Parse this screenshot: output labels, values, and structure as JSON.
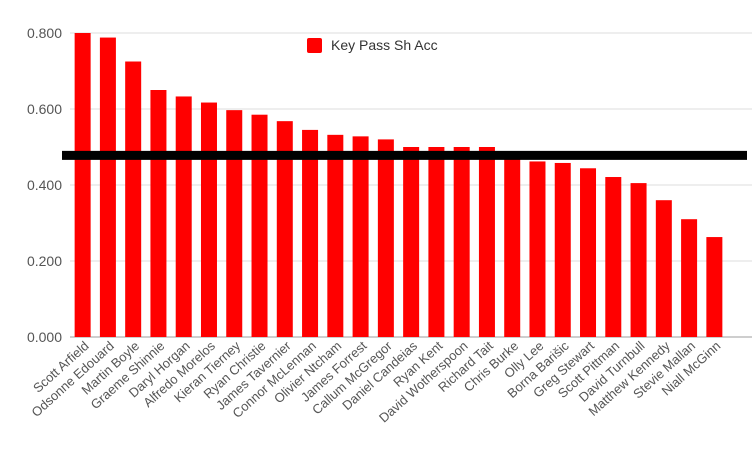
{
  "chart_data": {
    "type": "bar",
    "title": "",
    "xlabel": "",
    "ylabel": "",
    "ylim": [
      0,
      0.8
    ],
    "yticks": [
      "0.000",
      "0.200",
      "0.400",
      "0.600",
      "0.800"
    ],
    "grid": true,
    "legend_position": "top-center",
    "series": [
      {
        "name": "Key Pass Sh Acc",
        "color": "#ff0000",
        "values": [
          0.8,
          0.788,
          0.725,
          0.65,
          0.633,
          0.617,
          0.597,
          0.585,
          0.568,
          0.545,
          0.532,
          0.528,
          0.52,
          0.5,
          0.5,
          0.5,
          0.5,
          0.478,
          0.462,
          0.458,
          0.444,
          0.421,
          0.405,
          0.36,
          0.31,
          0.263
        ]
      }
    ],
    "categories": [
      "Scott Arfield",
      "Odsonne Edouard",
      "Martin Boyle",
      "Graeme Shinnie",
      "Daryl Horgan",
      "Alfredo Morelos",
      "Kieran Tierney",
      "Ryan Christie",
      "James Tavernier",
      "Connor McLennan",
      "Olivier Ntcham",
      "James Forrest",
      "Callum McGregor",
      "Daniel Candeias",
      "Ryan Kent",
      "David Wotherspoon",
      "Richard Tait",
      "Chris Burke",
      "Olly Lee",
      "Borna Barišic",
      "Greg Stewart",
      "Scott Pittman",
      "David Turnbull",
      "Matthew Kennedy",
      "Stevie Mallan",
      "Niall McGinn"
    ],
    "reference_line": {
      "value": 0.478,
      "color": "#000000"
    }
  }
}
